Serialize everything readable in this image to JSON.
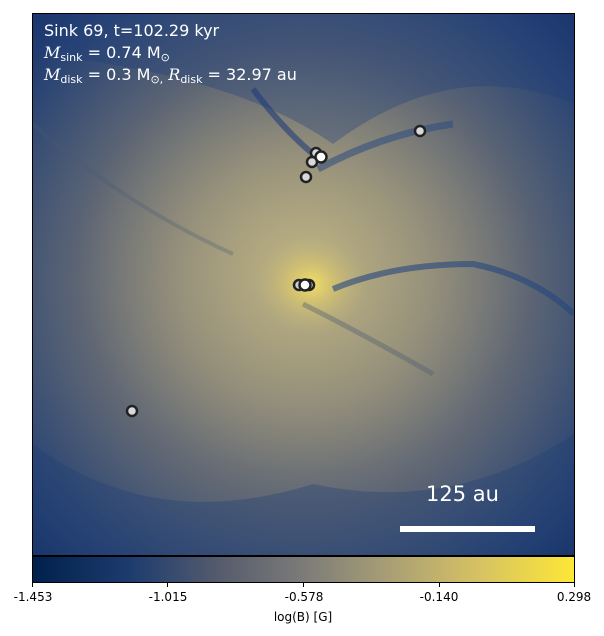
{
  "annotation": {
    "title": "Sink 69, t=102.29 kyr",
    "m_sink_symbol": "M",
    "m_sink_sub": "sink",
    "m_sink_value": "= 0.74 M",
    "m_sink_sun": "⊙",
    "m_disk_symbol": "M",
    "m_disk_sub": "disk",
    "m_disk_value": "= 0.3 M",
    "m_disk_sun": "⊙,",
    "r_disk_symbol": "R",
    "r_disk_sub": "disk",
    "r_disk_value": "= 32.97 au"
  },
  "scalebar": {
    "label": "125 au"
  },
  "colorbar": {
    "label": "log(B) [G]",
    "ticks": [
      "-1.453",
      "-1.015",
      "-0.578",
      "-0.140",
      "0.298"
    ],
    "colors": [
      "#00204c",
      "#1d3c6e",
      "#575d6d",
      "#7c7b78",
      "#a69d75",
      "#d5c164",
      "#fde737"
    ]
  }
}
